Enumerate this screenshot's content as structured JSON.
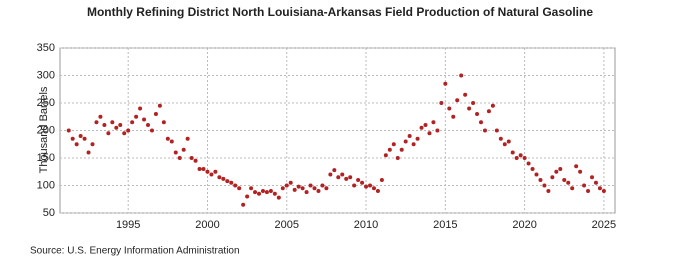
{
  "chart_data": {
    "type": "scatter",
    "title": "Monthly Refining District North Louisiana-Arkansas Field Production of Natural Gasoline",
    "y_label": "Thousand Barrels",
    "source": "Source: U.S. Energy Information Administration",
    "color": "#b22222",
    "grid": true,
    "xlim": [
      1990.7,
      2025.7
    ],
    "ylim": [
      50,
      350
    ],
    "xticks": [
      1995,
      2000,
      2005,
      2010,
      2015,
      2020,
      2025
    ],
    "yticks": [
      50,
      100,
      150,
      200,
      250,
      300,
      350
    ],
    "x": [
      1991.25,
      1991.5,
      1991.75,
      1992,
      1992.25,
      1992.5,
      1992.75,
      1993,
      1993.25,
      1993.5,
      1993.75,
      1994,
      1994.25,
      1994.5,
      1994.75,
      1995,
      1995.25,
      1995.5,
      1995.75,
      1996,
      1996.25,
      1996.5,
      1996.75,
      1997,
      1997.25,
      1997.5,
      1997.75,
      1998,
      1998.25,
      1998.5,
      1998.75,
      1999,
      1999.25,
      1999.5,
      1999.75,
      2000,
      2000.25,
      2000.5,
      2000.75,
      2001,
      2001.25,
      2001.5,
      2001.75,
      2002,
      2002.25,
      2002.5,
      2002.75,
      2003,
      2003.25,
      2003.5,
      2003.75,
      2004,
      2004.25,
      2004.5,
      2004.75,
      2005,
      2005.25,
      2005.5,
      2005.75,
      2006,
      2006.25,
      2006.5,
      2006.75,
      2007,
      2007.25,
      2007.5,
      2007.75,
      2008,
      2008.25,
      2008.5,
      2008.75,
      2009,
      2009.25,
      2009.5,
      2009.75,
      2010,
      2010.25,
      2010.5,
      2010.75,
      2011,
      2011.25,
      2011.5,
      2011.75,
      2012,
      2012.25,
      2012.5,
      2012.75,
      2013,
      2013.25,
      2013.5,
      2013.75,
      2014,
      2014.25,
      2014.5,
      2014.75,
      2015,
      2015.25,
      2015.5,
      2015.75,
      2016,
      2016.25,
      2016.5,
      2016.75,
      2017,
      2017.25,
      2017.5,
      2017.75,
      2018,
      2018.25,
      2018.5,
      2018.75,
      2019,
      2019.25,
      2019.5,
      2019.75,
      2020,
      2020.25,
      2020.5,
      2020.75,
      2021,
      2021.25,
      2021.5,
      2021.75,
      2022,
      2022.25,
      2022.5,
      2022.75,
      2023,
      2023.25,
      2023.5,
      2023.75,
      2024,
      2024.25,
      2024.5,
      2024.75,
      2025
    ],
    "values": [
      200,
      185,
      175,
      190,
      185,
      160,
      175,
      215,
      225,
      210,
      195,
      215,
      205,
      210,
      195,
      200,
      215,
      225,
      240,
      220,
      210,
      200,
      230,
      245,
      215,
      185,
      180,
      160,
      150,
      165,
      185,
      150,
      145,
      130,
      130,
      125,
      120,
      125,
      115,
      112,
      108,
      105,
      100,
      95,
      65,
      80,
      95,
      88,
      85,
      90,
      88,
      90,
      85,
      78,
      95,
      100,
      105,
      92,
      98,
      95,
      88,
      100,
      95,
      90,
      100,
      95,
      120,
      128,
      115,
      120,
      112,
      115,
      100,
      110,
      105,
      98,
      100,
      95,
      90,
      110,
      155,
      165,
      175,
      150,
      165,
      180,
      190,
      175,
      185,
      205,
      210,
      195,
      215,
      200,
      250,
      285,
      240,
      225,
      255,
      300,
      265,
      240,
      250,
      230,
      215,
      200,
      235,
      245,
      200,
      185,
      175,
      180,
      160,
      150,
      155,
      150,
      140,
      130,
      120,
      110,
      100,
      90,
      115,
      125,
      130,
      110,
      105,
      95,
      135,
      125,
      100,
      90,
      115,
      105,
      95,
      90
    ]
  }
}
